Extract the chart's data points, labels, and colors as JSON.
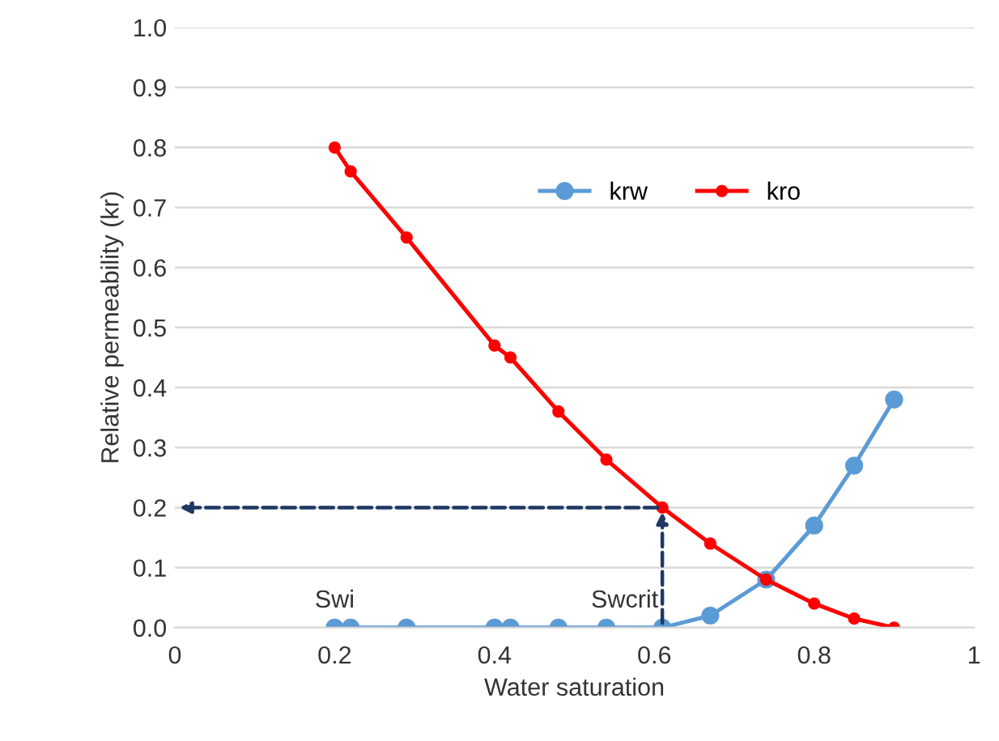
{
  "chart_data": {
    "type": "line",
    "xlabel": "Water saturation",
    "ylabel": "Relative permeability (kr)",
    "x": [
      0.2,
      0.22,
      0.29,
      0.4,
      0.42,
      0.48,
      0.54,
      0.61,
      0.67,
      0.74,
      0.8,
      0.85,
      0.9
    ],
    "series": [
      {
        "name": "krw",
        "color": "#5b9bd5",
        "values": [
          0,
          0,
          0,
          0,
          0,
          0,
          0,
          0,
          0.02,
          0.08,
          0.17,
          0.27,
          0.38
        ]
      },
      {
        "name": "kro",
        "color": "#ff0000",
        "values": [
          0.8,
          0.76,
          0.65,
          0.47,
          0.45,
          0.36,
          0.28,
          0.2,
          0.14,
          0.08,
          0.04,
          0.015,
          0
        ]
      }
    ],
    "xlim": [
      0,
      1
    ],
    "xticks": [
      0,
      0.2,
      0.4,
      0.6,
      0.8,
      1
    ],
    "ylim": [
      0,
      1
    ],
    "yticks": [
      {
        "value": 0,
        "label": "0.0"
      },
      {
        "value": 0.1,
        "label": "0.1"
      },
      {
        "value": 0.2,
        "label": "0.2"
      },
      {
        "value": 0.3,
        "label": "0.3"
      },
      {
        "value": 0.4,
        "label": "0.4"
      },
      {
        "value": 0.5,
        "label": "0.5"
      },
      {
        "value": 0.6,
        "label": "0.6"
      },
      {
        "value": 0.7,
        "label": "0.7"
      },
      {
        "value": 0.8,
        "label": "0.8"
      },
      {
        "value": 0.9,
        "label": "0.9"
      },
      {
        "value": 1,
        "label": "1.0"
      }
    ],
    "annotations": [
      {
        "text": "Swi",
        "x": 0.2,
        "y": 0
      },
      {
        "text": "Swcrit",
        "x": 0.61,
        "y": 0.2
      }
    ],
    "grid": "y",
    "legend": "top",
    "marker": "circle",
    "line_style": "solid"
  }
}
